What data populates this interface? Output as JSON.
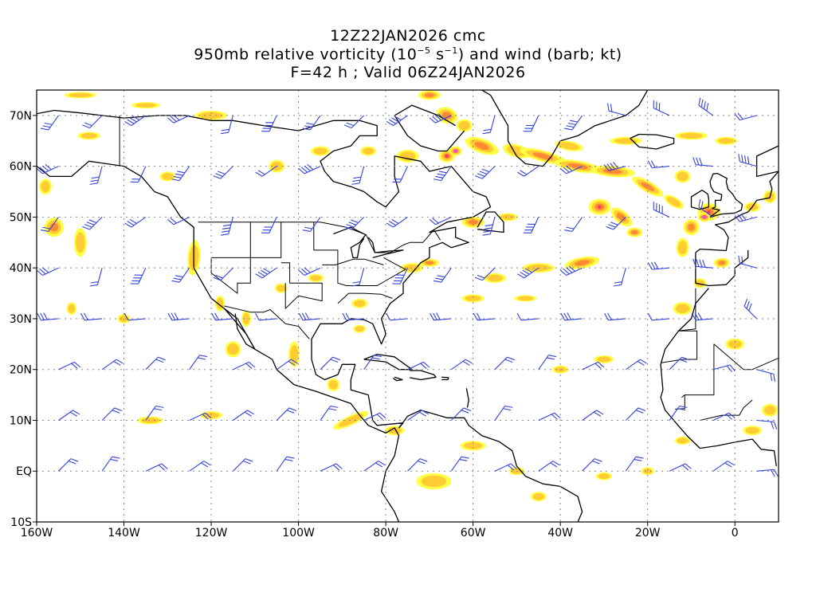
{
  "title": {
    "line1": "12Z22JAN2026 cmc",
    "line2_pre": "950mb relative vorticity (10",
    "line2_exp1": "−5",
    "line2_mid": " s",
    "line2_exp2": "−1",
    "line2_post": ") and wind (barb; kt)",
    "line3": "F=42 h ; Valid 06Z24JAN2026"
  },
  "axes": {
    "lon_ticks": [
      "160W",
      "140W",
      "120W",
      "100W",
      "80W",
      "60W",
      "40W",
      "20W",
      "0"
    ],
    "lat_ticks": [
      "70N",
      "60N",
      "50N",
      "40N",
      "30N",
      "20N",
      "10N",
      "EQ",
      "10S"
    ],
    "lon_range": [
      -160,
      10
    ],
    "lat_range": [
      -10,
      75
    ],
    "grid": true
  },
  "colors": {
    "vort_low": "#ffff44",
    "vort_mid": "#ffcc33",
    "vort_high": "#ff8833",
    "vort_peak": "#ff3366",
    "vort_max": "#ff44ee",
    "barb": "#3344dd",
    "coast": "#000000",
    "grid": "#888888"
  }
}
